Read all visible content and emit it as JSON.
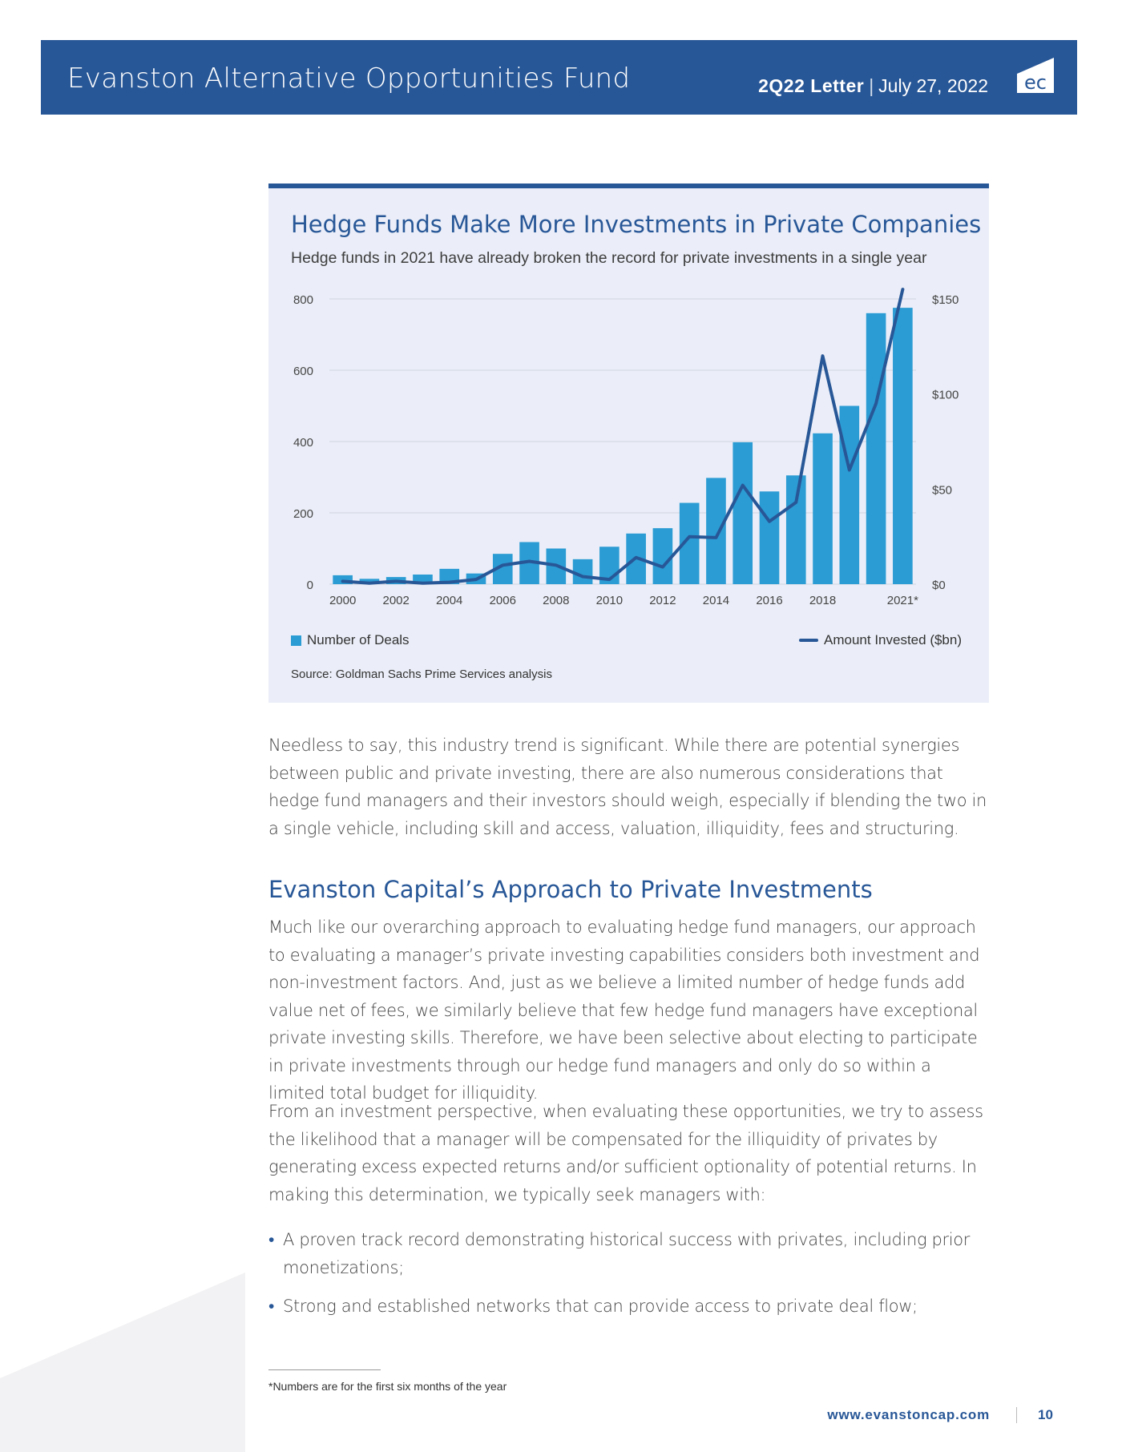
{
  "header": {
    "title": "Evanston Alternative Opportunities Fund",
    "letter": "2Q22 Letter",
    "separator": "|",
    "date": "July 27, 2022",
    "logo_text": "ec"
  },
  "chart": {
    "title": "Hedge Funds Make More Investments in Private Companies",
    "subtitle": "Hedge funds in 2021 have already broken the record for private investments in a single year",
    "legend_bars": "Number of Deals",
    "legend_line": "Amount Invested ($bn)",
    "source": "Source: Goldman Sachs Prime Services analysis"
  },
  "chart_data": {
    "type": "bar",
    "x": [
      "2000",
      "2001",
      "2002",
      "2003",
      "2004",
      "2005",
      "2006",
      "2007",
      "2008",
      "2009",
      "2010",
      "2011",
      "2012",
      "2013",
      "2014",
      "2015",
      "2016",
      "2017",
      "2018",
      "2019",
      "2020",
      "2021*"
    ],
    "x_tick_labels": [
      "2000",
      "2002",
      "2004",
      "2006",
      "2008",
      "2010",
      "2012",
      "2014",
      "2016",
      "2018",
      "2021*"
    ],
    "y_left_ticks": [
      "0",
      "200",
      "400",
      "600",
      "800"
    ],
    "y_left_lim": [
      0,
      800
    ],
    "y_right_ticks": [
      "$0",
      "$50",
      "$100",
      "$150"
    ],
    "y_right_lim": [
      0,
      150
    ],
    "grid": true,
    "legend_placement": "bottom",
    "series": [
      {
        "name": "Number of Deals",
        "type": "bar",
        "axis": "left",
        "color": "#2b9cd4",
        "values": [
          25,
          15,
          20,
          27,
          43,
          30,
          85,
          118,
          100,
          70,
          105,
          142,
          157,
          228,
          298,
          398,
          260,
          305,
          423,
          500,
          760,
          775
        ]
      },
      {
        "name": "Amount Invested ($bn)",
        "type": "line",
        "axis": "right",
        "color": "#285797",
        "values": [
          1.5,
          0.5,
          1.5,
          0.5,
          1,
          2.5,
          10,
          12,
          10,
          4,
          2.5,
          14,
          9,
          25,
          24.5,
          52,
          33,
          43,
          120,
          60,
          95,
          155
        ]
      }
    ]
  },
  "paragraphs": [
    "Needless to say, this industry trend is significant. While there are potential synergies between public and private investing, there are also numerous considerations that hedge fund managers and their investors should weigh, especially if blending the two in a single vehicle, including skill and access, valuation, illiquidity, fees and structuring.",
    "Much like our overarching approach to evaluating hedge fund managers, our approach to evaluating a manager’s private investing capabilities considers both investment and non-investment factors. And, just as we believe a limited number of hedge funds add value net of fees, we similarly believe that few hedge fund managers have exceptional private investing skills. Therefore, we have been selective about electing to participate in private investments through our hedge fund managers and only do so within a limited total budget for illiquidity.",
    "From an investment perspective, when evaluating these opportunities, we try to assess the likelihood that a manager will be compensated for the illiquidity of privates by generating excess expected returns and/or sufficient optionality of potential returns. In making this determination, we typically seek managers with:"
  ],
  "section_heading": "Evanston Capital’s Approach to Private Investments",
  "bullets": [
    "A proven track record demonstrating historical success with privates, including prior monetizations;",
    "Strong and established networks that can provide access to private deal flow;"
  ],
  "footnote": "*Numbers are for the first six months of the year",
  "footer": {
    "url": "www.evanstoncap.com",
    "page": "10"
  }
}
